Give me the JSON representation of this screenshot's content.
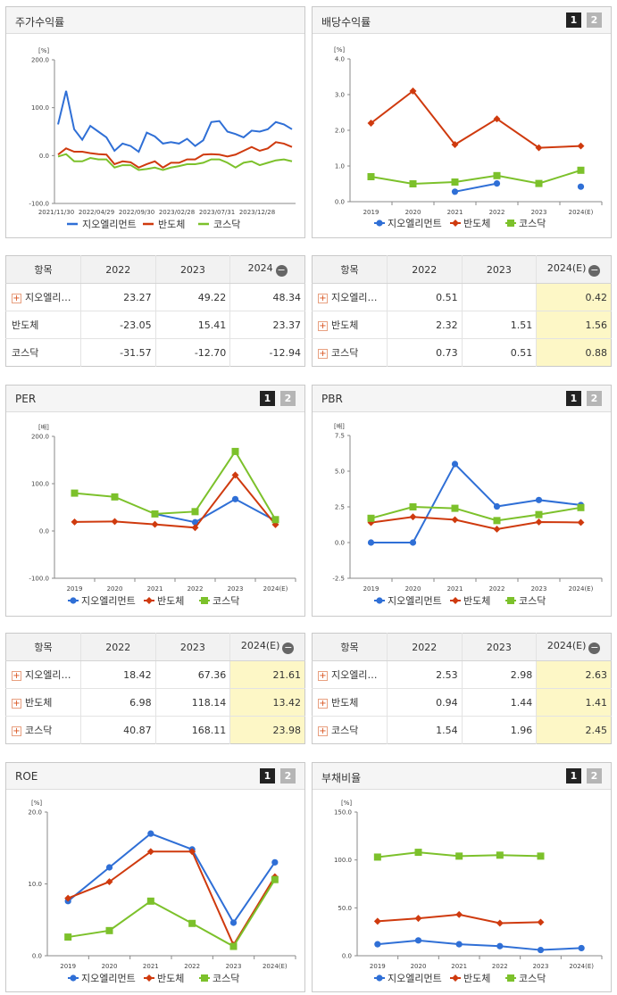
{
  "colors": {
    "s1": "#2f6fd6",
    "s2": "#cf3a0e",
    "s3": "#7cc12b"
  },
  "series_names": [
    "지오엘리먼트",
    "반도체",
    "코스닥"
  ],
  "pager": {
    "p1": "1",
    "p2": "2"
  },
  "panels": {
    "p_return": {
      "title": "주가수익률"
    },
    "p_div": {
      "title": "배당수익률"
    },
    "p_per": {
      "title": "PER"
    },
    "p_pbr": {
      "title": "PBR"
    },
    "p_roe": {
      "title": "ROE"
    },
    "p_debt": {
      "title": "부채비율"
    }
  },
  "chart_data": [
    {
      "id": "return",
      "type": "line",
      "unit": "[%]",
      "yticks": [
        "200.0",
        "100.0",
        "0.0",
        "-100.0"
      ],
      "ylim": [
        -100,
        200
      ],
      "xticks": [
        "2021/11/30",
        "2022/04/29",
        "2022/09/30",
        "2023/02/28",
        "2023/07/31",
        "2023/12/28"
      ],
      "series": [
        {
          "name": "지오엘리먼트",
          "values": [
            65,
            135,
            55,
            33,
            62,
            50,
            38,
            10,
            25,
            20,
            8,
            48,
            40,
            25,
            28,
            25,
            35,
            20,
            32,
            70,
            72,
            50,
            45,
            38,
            52,
            50,
            55,
            70,
            65,
            55
          ]
        },
        {
          "name": "반도체",
          "values": [
            2,
            15,
            8,
            8,
            5,
            3,
            2,
            -18,
            -12,
            -14,
            -25,
            -18,
            -12,
            -25,
            -15,
            -15,
            -8,
            -8,
            2,
            3,
            2,
            -2,
            2,
            10,
            18,
            10,
            15,
            28,
            25,
            18
          ]
        },
        {
          "name": "코스닥",
          "values": [
            -2,
            3,
            -12,
            -12,
            -5,
            -8,
            -8,
            -25,
            -20,
            -20,
            -30,
            -28,
            -25,
            -30,
            -25,
            -22,
            -18,
            -18,
            -15,
            -8,
            -8,
            -15,
            -25,
            -15,
            -12,
            -20,
            -15,
            -10,
            -8,
            -12
          ]
        }
      ]
    },
    {
      "id": "dividend",
      "type": "line",
      "unit": "[%]",
      "yticks": [
        "4.0",
        "3.0",
        "2.0",
        "1.0",
        "0.0"
      ],
      "ylim": [
        0,
        4
      ],
      "categories": [
        "2019",
        "2020",
        "2021",
        "2022",
        "2023",
        "2024(E)"
      ],
      "series": [
        {
          "name": "지오엘리먼트",
          "values": [
            null,
            null,
            0.28,
            0.51,
            null,
            0.42
          ]
        },
        {
          "name": "반도체",
          "values": [
            2.2,
            3.1,
            1.6,
            2.32,
            1.51,
            1.56
          ]
        },
        {
          "name": "코스닥",
          "values": [
            0.7,
            0.5,
            0.55,
            0.73,
            0.51,
            0.88
          ]
        }
      ]
    },
    {
      "id": "per",
      "type": "line",
      "unit": "[배]",
      "yticks": [
        "200.0",
        "100.0",
        "0.0",
        "-100.0"
      ],
      "ylim": [
        -100,
        200
      ],
      "categories": [
        "2019",
        "2020",
        "2021",
        "2022",
        "2023",
        "2024(E)"
      ],
      "series": [
        {
          "name": "지오엘리먼트",
          "values": [
            null,
            null,
            36,
            18.42,
            67.36,
            21.61
          ]
        },
        {
          "name": "반도체",
          "values": [
            19,
            20,
            14,
            6.98,
            118.14,
            13.42
          ]
        },
        {
          "name": "코스닥",
          "values": [
            80,
            72,
            36,
            40.87,
            168.11,
            23.98
          ]
        }
      ]
    },
    {
      "id": "pbr",
      "type": "line",
      "unit": "[배]",
      "yticks": [
        "7.5",
        "5.0",
        "2.5",
        "0.0",
        "-2.5"
      ],
      "ylim": [
        -2.5,
        7.5
      ],
      "categories": [
        "2019",
        "2020",
        "2021",
        "2022",
        "2023",
        "2024(E)"
      ],
      "series": [
        {
          "name": "지오엘리먼트",
          "values": [
            0,
            0,
            5.5,
            2.53,
            2.98,
            2.63
          ]
        },
        {
          "name": "반도체",
          "values": [
            1.4,
            1.8,
            1.6,
            0.94,
            1.44,
            1.41
          ]
        },
        {
          "name": "코스닥",
          "values": [
            1.7,
            2.5,
            2.4,
            1.54,
            1.96,
            2.45
          ]
        }
      ]
    },
    {
      "id": "roe",
      "type": "line",
      "unit": "[%]",
      "yticks": [
        "20.0",
        "10.0",
        "0.0"
      ],
      "ylim": [
        0,
        20
      ],
      "categories": [
        "2019",
        "2020",
        "2021",
        "2022",
        "2023",
        "2024(E)"
      ],
      "series": [
        {
          "name": "지오엘리먼트",
          "values": [
            7.6,
            12.3,
            17,
            14.8,
            4.6,
            13
          ]
        },
        {
          "name": "반도체",
          "values": [
            8,
            10.3,
            14.5,
            14.5,
            1.5,
            11
          ]
        },
        {
          "name": "코스닥",
          "values": [
            2.6,
            3.5,
            7.6,
            4.5,
            1.3,
            10.6
          ]
        }
      ]
    },
    {
      "id": "debt",
      "type": "line",
      "unit": "[%]",
      "yticks": [
        "150.0",
        "100.0",
        "50.0",
        "0.0"
      ],
      "ylim": [
        0,
        150
      ],
      "categories": [
        "2019",
        "2020",
        "2021",
        "2022",
        "2023",
        "2024(E)"
      ],
      "series": [
        {
          "name": "지오엘리먼트",
          "values": [
            12,
            16,
            12,
            10,
            6,
            8
          ]
        },
        {
          "name": "반도체",
          "values": [
            36,
            39,
            43,
            34,
            35,
            null
          ]
        },
        {
          "name": "코스닥",
          "values": [
            103,
            108,
            104,
            105,
            104,
            null
          ]
        }
      ]
    }
  ],
  "tables": {
    "t_return": {
      "h0": "항목",
      "h1": "2022",
      "h2": "2023",
      "h3": "2024",
      "rows": [
        {
          "name": "지오엘리…",
          "v1": "23.27",
          "v2": "49.22",
          "v3": "48.34"
        },
        {
          "name": "반도체",
          "v1": "-23.05",
          "v2": "15.41",
          "v3": "23.37"
        },
        {
          "name": "코스닥",
          "v1": "-31.57",
          "v2": "-12.70",
          "v3": "-12.94"
        }
      ]
    },
    "t_div": {
      "h0": "항목",
      "h1": "2022",
      "h2": "2023",
      "h3": "2024(E)",
      "rows": [
        {
          "name": "지오엘리…",
          "v1": "0.51",
          "v2": "",
          "v3": "0.42"
        },
        {
          "name": "반도체",
          "v1": "2.32",
          "v2": "1.51",
          "v3": "1.56"
        },
        {
          "name": "코스닥",
          "v1": "0.73",
          "v2": "0.51",
          "v3": "0.88"
        }
      ]
    },
    "t_per": {
      "h0": "항목",
      "h1": "2022",
      "h2": "2023",
      "h3": "2024(E)",
      "rows": [
        {
          "name": "지오엘리…",
          "v1": "18.42",
          "v2": "67.36",
          "v3": "21.61"
        },
        {
          "name": "반도체",
          "v1": "6.98",
          "v2": "118.14",
          "v3": "13.42"
        },
        {
          "name": "코스닥",
          "v1": "40.87",
          "v2": "168.11",
          "v3": "23.98"
        }
      ]
    },
    "t_pbr": {
      "h0": "항목",
      "h1": "2022",
      "h2": "2023",
      "h3": "2024(E)",
      "rows": [
        {
          "name": "지오엘리…",
          "v1": "2.53",
          "v2": "2.98",
          "v3": "2.63"
        },
        {
          "name": "반도체",
          "v1": "0.94",
          "v2": "1.44",
          "v3": "1.41"
        },
        {
          "name": "코스닥",
          "v1": "1.54",
          "v2": "1.96",
          "v3": "2.45"
        }
      ]
    }
  }
}
